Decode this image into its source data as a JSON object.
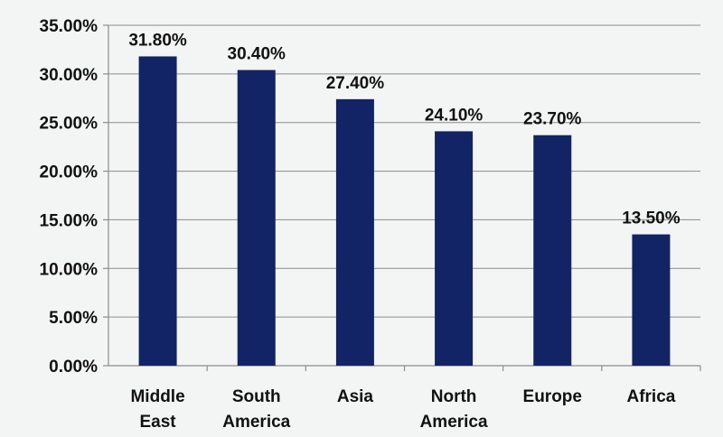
{
  "chart_data": {
    "type": "bar",
    "categories": [
      [
        "Middle",
        "East"
      ],
      [
        "South",
        "America"
      ],
      [
        "Asia"
      ],
      [
        "North",
        "America"
      ],
      [
        "Europe"
      ],
      [
        "Africa"
      ]
    ],
    "values": [
      31.8,
      30.4,
      27.4,
      24.1,
      23.7,
      13.5
    ],
    "data_labels": [
      "31.80%",
      "30.40%",
      "27.40%",
      "24.10%",
      "23.70%",
      "13.50%"
    ],
    "y_ticks": [
      "0.00%",
      "5.00%",
      "10.00%",
      "15.00%",
      "20.00%",
      "25.00%",
      "30.00%",
      "35.00%"
    ],
    "ylim": [
      0,
      35
    ],
    "grid": true,
    "legend": "none",
    "bar_color": "#122465"
  }
}
